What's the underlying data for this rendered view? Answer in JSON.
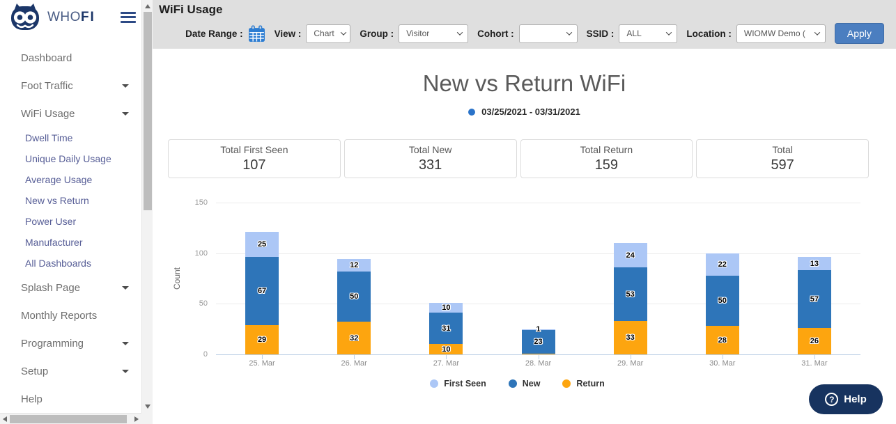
{
  "colors": {
    "brand_navy": "#1B3668",
    "first_seen": "#ACC7F6",
    "new": "#2E75B9",
    "return": "#FDA50F",
    "apply_button": "#4B7EC0",
    "calendar_icon": "#2D7DD2",
    "subtitle_dot": "#2A73C9",
    "help_pill": "#17335F",
    "header_band": "#DFDFDF"
  },
  "sidebar": {
    "brand": {
      "who": "WHO",
      "fi": "FI",
      "logo_icon": "owl-icon",
      "menu_icon": "hamburger-icon"
    },
    "items": [
      {
        "label": "Dashboard",
        "level": "top",
        "caret": false
      },
      {
        "label": "Foot Traffic",
        "level": "top",
        "caret": true
      },
      {
        "label": "WiFi Usage",
        "level": "top",
        "caret": true
      },
      {
        "label": "Dwell Time",
        "level": "sub",
        "caret": false
      },
      {
        "label": "Unique Daily Usage",
        "level": "sub",
        "caret": false
      },
      {
        "label": "Average Usage",
        "level": "sub",
        "caret": false
      },
      {
        "label": "New vs Return",
        "level": "sub",
        "caret": false
      },
      {
        "label": "Power User",
        "level": "sub",
        "caret": false
      },
      {
        "label": "Manufacturer",
        "level": "sub",
        "caret": false
      },
      {
        "label": "All Dashboards",
        "level": "sub",
        "caret": false
      },
      {
        "label": "Splash Page",
        "level": "top",
        "caret": true
      },
      {
        "label": "Monthly Reports",
        "level": "top",
        "caret": false
      },
      {
        "label": "Programming",
        "level": "top",
        "caret": true
      },
      {
        "label": "Setup",
        "level": "top",
        "caret": true
      },
      {
        "label": "Help",
        "level": "top",
        "caret": false
      }
    ]
  },
  "header": {
    "title": "WiFi Usage",
    "filters": [
      {
        "label": "Date Range :",
        "control": "calendar",
        "icon": "calendar-icon"
      },
      {
        "label": "View :",
        "control": "select",
        "value": "Chart"
      },
      {
        "label": "Group :",
        "control": "select",
        "value": "Visitor"
      },
      {
        "label": "Cohort :",
        "control": "select",
        "value": ""
      },
      {
        "label": "SSID :",
        "control": "select",
        "value": "ALL"
      },
      {
        "label": "Location :",
        "control": "select",
        "value": "WIOMW Demo ("
      }
    ],
    "apply_label": "Apply"
  },
  "chart_header": {
    "title": "New vs Return WiFi",
    "subtitle": "03/25/2021 - 03/31/2021"
  },
  "summary_cards": [
    {
      "label": "Total First Seen",
      "value": "107"
    },
    {
      "label": "Total New",
      "value": "331"
    },
    {
      "label": "Total Return",
      "value": "159"
    },
    {
      "label": "Total",
      "value": "597"
    }
  ],
  "chart_data": {
    "type": "bar",
    "stacked": true,
    "title": "New vs Return WiFi",
    "subtitle": "03/25/2021 - 03/31/2021",
    "categories": [
      "25. Mar",
      "26. Mar",
      "27. Mar",
      "28. Mar",
      "29. Mar",
      "30. Mar",
      "31. Mar"
    ],
    "series": [
      {
        "name": "Return",
        "color": "#FDA50F",
        "values": [
          29,
          32,
          10,
          1,
          33,
          28,
          26
        ]
      },
      {
        "name": "New",
        "color": "#2E75B9",
        "values": [
          67,
          50,
          31,
          23,
          53,
          50,
          57
        ]
      },
      {
        "name": "First Seen",
        "color": "#ACC7F6",
        "values": [
          25,
          12,
          10,
          1,
          24,
          22,
          13
        ]
      }
    ],
    "stack_order": "bottom-to-top as listed",
    "legend": [
      "First Seen",
      "New",
      "Return"
    ],
    "legend_position": "bottom",
    "xlabel": "",
    "ylabel": "Count",
    "ylim": [
      0,
      150
    ],
    "yticks": [
      0,
      50,
      100,
      150
    ],
    "grid": "horizontal"
  },
  "help": {
    "label": "Help",
    "icon": "question-circle-icon"
  }
}
